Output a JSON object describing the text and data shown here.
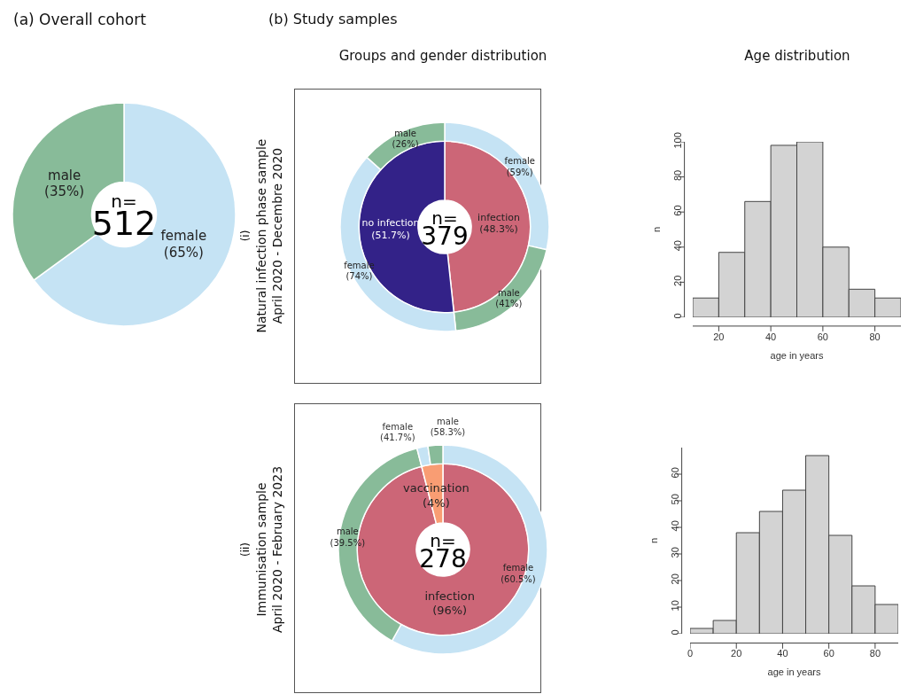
{
  "chart_data": [
    {
      "type": "donut",
      "title": "(a) Overall cohort",
      "categories": [
        "female",
        "male"
      ],
      "values": [
        65,
        35
      ],
      "colors": [
        "#c5e3f4",
        "#88bb99"
      ],
      "value_labels": [
        "(65%)",
        "(35%)"
      ],
      "annotations": [
        "n=\n512"
      ]
    },
    {
      "type": "donut",
      "title": "Groups and gender distribution",
      "ylabel": "(i)\nNatural infection phase  sample\nApril 2020 - Decembre 2020",
      "categories": [
        "infection",
        "no infection"
      ],
      "values": [
        48.3,
        51.7
      ],
      "colors": [
        "#cc6677",
        "#332288"
      ],
      "value_labels": [
        "(48.3%)",
        "(51.7%)"
      ],
      "annotations": [
        "n=\n379",
        "(b) Study samples"
      ]
    },
    {
      "type": "donut",
      "categories": [
        "female\n(59%)",
        "male\n(41%)",
        "female\n(74%)",
        "male\n(26%)"
      ],
      "values": [
        28.5,
        19.8,
        38.3,
        13.4
      ],
      "colors": [
        "#c5e3f4",
        "#88bb99",
        "#c5e3f4",
        "#88bb99"
      ]
    },
    {
      "type": "histogram",
      "title": "Age distribution",
      "xlabel": "age in years",
      "ylabel": "n",
      "bins": [
        10,
        20,
        30,
        40,
        50,
        60,
        70,
        80,
        90
      ],
      "values": [
        11,
        37,
        66,
        98,
        100,
        40,
        16,
        11
      ],
      "color": "#d3d3d3",
      "xlim": [
        10,
        90
      ],
      "xticks": [
        20,
        40,
        60,
        80
      ],
      "ylim": [
        0,
        100
      ],
      "yticks": [
        0,
        20,
        40,
        60,
        80,
        100
      ]
    },
    {
      "type": "donut",
      "ylabel": "(ii)\nImmunisation  sample\nApril 2020 - February 2023",
      "categories": [
        "infection",
        "vaccination"
      ],
      "values": [
        96,
        4
      ],
      "colors": [
        "#cc6677",
        "#f99d73"
      ],
      "value_labels": [
        "(96%)",
        "(4%)"
      ],
      "annotations": [
        "n=\n278"
      ]
    },
    {
      "type": "donut",
      "categories": [
        "female\n(60.5%)",
        "male\n(39.5%)",
        "female\n(41.7%)",
        "male\n(58.3%)"
      ],
      "values": [
        58.1,
        37.9,
        1.7,
        2.3
      ],
      "colors": [
        "#c5e3f4",
        "#88bb99",
        "#c5e3f4",
        "#88bb99"
      ]
    },
    {
      "type": "histogram",
      "xlabel": "age in years",
      "ylabel": "n",
      "bins": [
        0,
        10,
        20,
        30,
        40,
        50,
        60,
        70,
        80,
        90
      ],
      "values": [
        2,
        5,
        38,
        46,
        54,
        67,
        37,
        18,
        11
      ],
      "color": "#d3d3d3",
      "xlim": [
        0,
        90
      ],
      "xticks": [
        0,
        20,
        40,
        60,
        80
      ],
      "ylim": [
        0,
        70
      ],
      "yticks": [
        0,
        10,
        20,
        30,
        40,
        50,
        60
      ]
    }
  ]
}
